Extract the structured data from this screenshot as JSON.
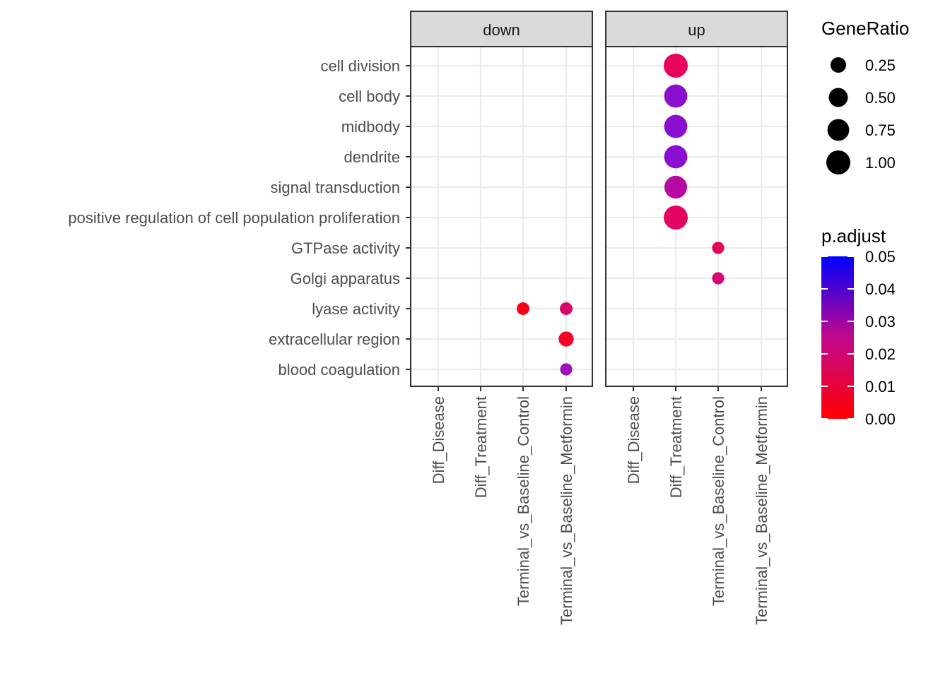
{
  "chart_data": {
    "type": "scatter",
    "subtype": "faceted-dotplot",
    "facets": [
      "down",
      "up"
    ],
    "x_categories": [
      "Diff_Disease",
      "Diff_Treatment",
      "Terminal_vs_Baseline_Control",
      "Terminal_vs_Baseline_Metformin"
    ],
    "y_categories": [
      "cell division",
      "cell body",
      "midbody",
      "dendrite",
      "signal transduction",
      "positive regulation of cell population proliferation",
      "GTPase activity",
      "Golgi apparatus",
      "lyase activity",
      "extracellular region",
      "blood coagulation"
    ],
    "points": [
      {
        "facet": "down",
        "x": "Terminal_vs_Baseline_Control",
        "y": "lyase activity",
        "gene_ratio": 0.11,
        "p_adjust": 0.001,
        "color": "#fa0318"
      },
      {
        "facet": "down",
        "x": "Terminal_vs_Baseline_Metformin",
        "y": "lyase activity",
        "gene_ratio": 0.11,
        "p_adjust": 0.02,
        "color": "#d8066c"
      },
      {
        "facet": "down",
        "x": "Terminal_vs_Baseline_Metformin",
        "y": "extracellular region",
        "gene_ratio": 0.22,
        "p_adjust": 0.002,
        "color": "#f40223"
      },
      {
        "facet": "down",
        "x": "Terminal_vs_Baseline_Metformin",
        "y": "blood coagulation",
        "gene_ratio": 0.09,
        "p_adjust": 0.038,
        "color": "#9d0ebd"
      },
      {
        "facet": "up",
        "x": "Diff_Treatment",
        "y": "cell division",
        "gene_ratio": 1.0,
        "p_adjust": 0.01,
        "color": "#e8035b"
      },
      {
        "facet": "up",
        "x": "Diff_Treatment",
        "y": "cell body",
        "gene_ratio": 0.9,
        "p_adjust": 0.04,
        "color": "#8a0ed0"
      },
      {
        "facet": "up",
        "x": "Diff_Treatment",
        "y": "midbody",
        "gene_ratio": 0.9,
        "p_adjust": 0.04,
        "color": "#8a0ed0"
      },
      {
        "facet": "up",
        "x": "Diff_Treatment",
        "y": "dendrite",
        "gene_ratio": 0.9,
        "p_adjust": 0.04,
        "color": "#8a0ed0"
      },
      {
        "facet": "up",
        "x": "Diff_Treatment",
        "y": "signal transduction",
        "gene_ratio": 0.85,
        "p_adjust": 0.028,
        "color": "#b60aa1"
      },
      {
        "facet": "up",
        "x": "Diff_Treatment",
        "y": "positive regulation of cell population proliferation",
        "gene_ratio": 1.0,
        "p_adjust": 0.012,
        "color": "#e20460"
      },
      {
        "facet": "up",
        "x": "Terminal_vs_Baseline_Control",
        "y": "GTPase activity",
        "gene_ratio": 0.09,
        "p_adjust": 0.015,
        "color": "#e5055d"
      },
      {
        "facet": "up",
        "x": "Terminal_vs_Baseline_Control",
        "y": "Golgi apparatus",
        "gene_ratio": 0.09,
        "p_adjust": 0.02,
        "color": "#d80674"
      }
    ],
    "size_legend": {
      "title": "GeneRatio",
      "values": [
        0.25,
        0.5,
        0.75,
        1.0
      ],
      "labels": [
        "0.25",
        "0.50",
        "0.75",
        "1.00"
      ]
    },
    "color_legend": {
      "title": "p.adjust",
      "min": 0.0,
      "max": 0.05,
      "low_color": "#ff0000",
      "high_color": "#0000ff",
      "labels": [
        "0.05",
        "0.04",
        "0.03",
        "0.02",
        "0.01",
        "0.00"
      ],
      "values": [
        0.05,
        0.04,
        0.03,
        0.02,
        0.01,
        0.0
      ]
    },
    "grid": true,
    "legend_position": "right",
    "xlabel": "",
    "ylabel": "",
    "title": ""
  }
}
